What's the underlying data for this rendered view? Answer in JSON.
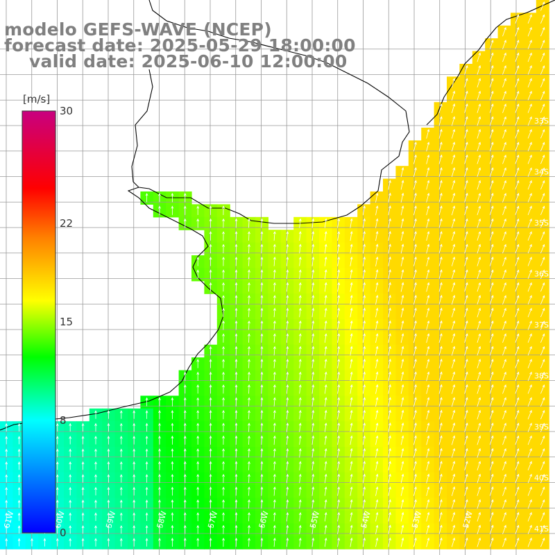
{
  "title": {
    "line1": "modelo GEFS-WAVE (NCEP)",
    "line2": "forecast date: 2025-05-29 18:00:00",
    "line3": "valid date: 2025-06-10 12:00:00"
  },
  "colorbar": {
    "unit": "[m/s]",
    "tick_labels": [
      "30",
      "22",
      "15",
      "8",
      "0"
    ],
    "tick_values": [
      30,
      22,
      15,
      8,
      0
    ],
    "range": [
      0,
      30
    ],
    "stops": [
      "#0000ff",
      "#00ffff",
      "#00ff00",
      "#ffff00",
      "#ff8000",
      "#ff0000",
      "#c80080"
    ]
  },
  "map": {
    "variable": "wind speed",
    "projection": "lat-lon",
    "lat_range": [
      -41.2,
      -31.8
    ],
    "lon_range": [
      -62,
      -51.6
    ],
    "lat_labels": [
      "33S",
      "34S",
      "35S",
      "36S",
      "37S",
      "38S",
      "39S",
      "40S",
      "41S"
    ],
    "lat_values": [
      -33,
      -34,
      -35,
      -36,
      -37,
      -38,
      -39,
      -40,
      -41
    ],
    "lon_labels": [
      "61W",
      "60W",
      "59W",
      "58W",
      "57W",
      "56W",
      "55W",
      "54W",
      "53W",
      "52W"
    ],
    "lon_values": [
      -61,
      -60,
      -59,
      -58,
      -57,
      -56,
      -55,
      -54,
      -53,
      -52
    ],
    "land_color": "#ffffff",
    "grid_color": "#999999",
    "coast_color": "#000000",
    "arrow_color": "#ffffff"
  }
}
